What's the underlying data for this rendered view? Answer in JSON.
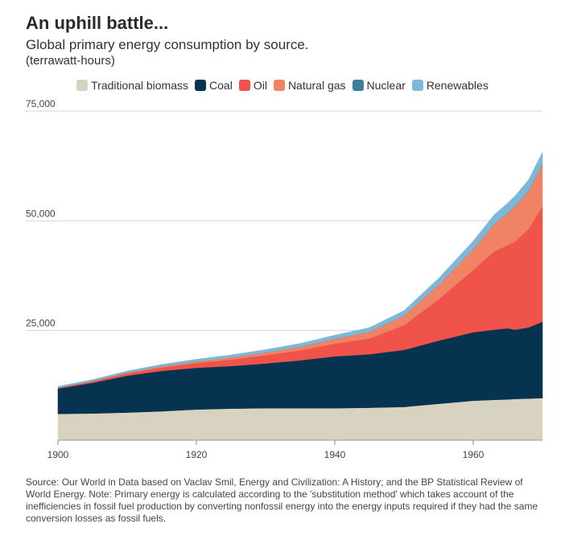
{
  "title": "An uphill battle...",
  "subtitle": "Global primary energy consumption by source.",
  "units": "(terrawatt-hours)",
  "source": "Source: Our World in Data based on Vaclav Smil, Energy and Civilization: A History; and the BP Statistical Review of World Energy. Note: Primary energy is calculated according to the 'substitution method' which takes account of the inefficiencies in fossil fuel production by converting nonfossil energy into the energy inputs required if they had the same conversion losses as fossil fuels.",
  "chart_data": {
    "type": "area",
    "stacked": true,
    "x": [
      1900,
      1905,
      1910,
      1915,
      1920,
      1925,
      1930,
      1935,
      1940,
      1945,
      1950,
      1955,
      1960,
      1963,
      1965,
      1966,
      1968,
      1970
    ],
    "xlim": [
      1900,
      1970
    ],
    "ylim": [
      0,
      75000
    ],
    "xticks": [
      "1900",
      "1920",
      "1940",
      "1960"
    ],
    "yticks": [
      "25,000",
      "50,000",
      "75,000"
    ],
    "yticks_values": [
      25000,
      50000,
      75000
    ],
    "xticks_values": [
      1900,
      1920,
      1940,
      1960
    ],
    "grid": "horizontal",
    "legend_position": "top",
    "series": [
      {
        "name": "Traditional biomass",
        "color": "#d7d3c0",
        "values": [
          6000,
          6100,
          6300,
          6600,
          7000,
          7200,
          7300,
          7300,
          7300,
          7400,
          7600,
          8300,
          9000,
          9200,
          9300,
          9400,
          9500,
          9600
        ]
      },
      {
        "name": "Coal",
        "color": "#06334f",
        "values": [
          5800,
          7000,
          8400,
          9200,
          9500,
          9700,
          10200,
          10900,
          11800,
          12200,
          13000,
          14400,
          15600,
          16000,
          16200,
          15800,
          16200,
          17400
        ]
      },
      {
        "name": "Oil",
        "color": "#ef5349",
        "values": [
          150,
          300,
          550,
          800,
          1100,
          1500,
          1900,
          2300,
          2900,
          3600,
          5600,
          9400,
          14200,
          17800,
          19000,
          20000,
          22500,
          26300
        ]
      },
      {
        "name": "Natural gas",
        "color": "#f08363",
        "values": [
          60,
          100,
          170,
          250,
          350,
          450,
          600,
          800,
          1100,
          1500,
          2200,
          3300,
          4700,
          6200,
          7300,
          8000,
          8600,
          9500
        ]
      },
      {
        "name": "Nuclear",
        "color": "#3e7f99",
        "values": [
          0,
          0,
          0,
          0,
          0,
          0,
          0,
          0,
          0,
          0,
          0,
          0,
          0,
          20,
          40,
          50,
          80,
          120
        ]
      },
      {
        "name": "Renewables",
        "color": "#7db8d8",
        "values": [
          250,
          300,
          350,
          420,
          500,
          580,
          650,
          750,
          850,
          950,
          1150,
          1500,
          1900,
          2100,
          2250,
          2350,
          2500,
          2700
        ]
      }
    ]
  }
}
